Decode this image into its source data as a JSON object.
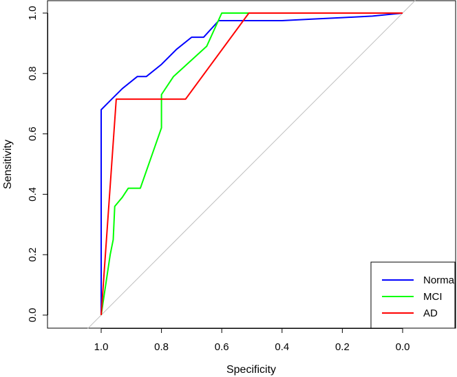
{
  "chart_data": {
    "type": "line",
    "title": "",
    "xlabel": "Specificity",
    "ylabel": "Sensitivity",
    "xlim": [
      1.14,
      -0.18
    ],
    "ylim": [
      -0.03,
      1.04
    ],
    "x_reversed": true,
    "xticks": [
      1.0,
      0.8,
      0.6,
      0.4,
      0.2,
      0.0
    ],
    "xtick_labels": [
      "1.0",
      "0.8",
      "0.6",
      "0.4",
      "0.2",
      "0.0"
    ],
    "yticks": [
      0.0,
      0.2,
      0.4,
      0.6,
      0.8,
      1.0
    ],
    "ytick_labels": [
      "0.0",
      "0.2",
      "0.4",
      "0.6",
      "0.8",
      "1.0"
    ],
    "grid": false,
    "legend_position": "bottom-right",
    "reference_line": {
      "x": [
        1.0,
        0.0
      ],
      "y": [
        0.0,
        1.0
      ],
      "color": "#bebebe"
    },
    "series": [
      {
        "name": "Normal",
        "color": "#0000ff",
        "x": [
          1.0,
          1.0,
          0.97,
          0.93,
          0.88,
          0.85,
          0.8,
          0.75,
          0.7,
          0.66,
          0.61,
          0.58,
          0.5,
          0.4,
          0.3,
          0.2,
          0.1,
          0.0
        ],
        "y": [
          0.0,
          0.68,
          0.71,
          0.75,
          0.79,
          0.79,
          0.83,
          0.88,
          0.92,
          0.92,
          0.975,
          0.975,
          0.975,
          0.975,
          0.98,
          0.985,
          0.99,
          1.0
        ]
      },
      {
        "name": "MCI",
        "color": "#00ff00",
        "x": [
          1.0,
          0.97,
          0.96,
          0.955,
          0.93,
          0.91,
          0.87,
          0.8,
          0.8,
          0.76,
          0.65,
          0.6,
          0.5,
          0.0
        ],
        "y": [
          0.0,
          0.2,
          0.25,
          0.36,
          0.39,
          0.42,
          0.42,
          0.62,
          0.73,
          0.79,
          0.89,
          1.0,
          1.0,
          1.0
        ]
      },
      {
        "name": "AD",
        "color": "#ff0000",
        "x": [
          1.0,
          0.95,
          0.95,
          0.72,
          0.51,
          0.0
        ],
        "y": [
          0.0,
          0.715,
          0.715,
          0.715,
          1.0,
          1.0
        ]
      }
    ]
  }
}
